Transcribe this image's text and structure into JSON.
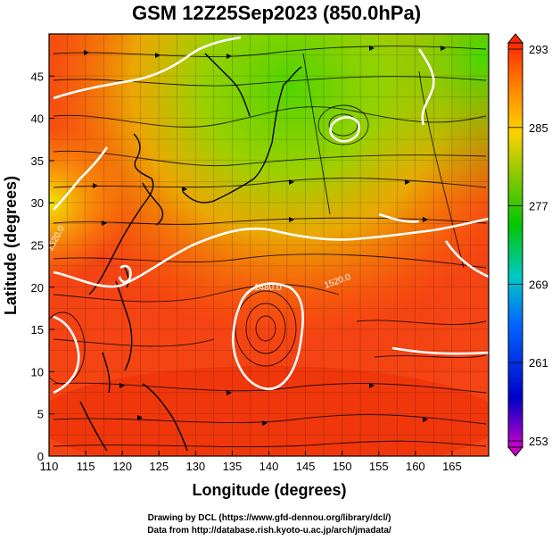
{
  "title": "GSM 12Z25Sep2023 (850.0hPa)",
  "x_axis": {
    "label": "Longitude (degrees)",
    "ticks": [
      "110",
      "115",
      "120",
      "125",
      "130",
      "135",
      "140",
      "145",
      "150",
      "155",
      "160",
      "165"
    ],
    "range": [
      110,
      170
    ]
  },
  "y_axis": {
    "label": "Latitude  (degrees)",
    "ticks": [
      "0",
      "5",
      "10",
      "15",
      "20",
      "25",
      "30",
      "35",
      "40",
      "45"
    ],
    "range": [
      0,
      50
    ]
  },
  "colorbar": {
    "labels": [
      "293",
      "285",
      "277",
      "269",
      "261",
      "253"
    ],
    "range": [
      253,
      293
    ],
    "colors": [
      "#c800c8",
      "#0000c8",
      "#0064ff",
      "#00c8c8",
      "#00c800",
      "#7dc800",
      "#ffd200",
      "#ff8c00",
      "#ff2800"
    ]
  },
  "contour_labels": [
    "1520.0",
    "1480.0",
    "1520.0"
  ],
  "credits": {
    "line1": "Drawing by DCL (https://www.gfd-dennou.org/library/dcl/)",
    "line2": "Data from http://database.rish.kyoto-u.ac.jp/arch/jmadata/"
  }
}
